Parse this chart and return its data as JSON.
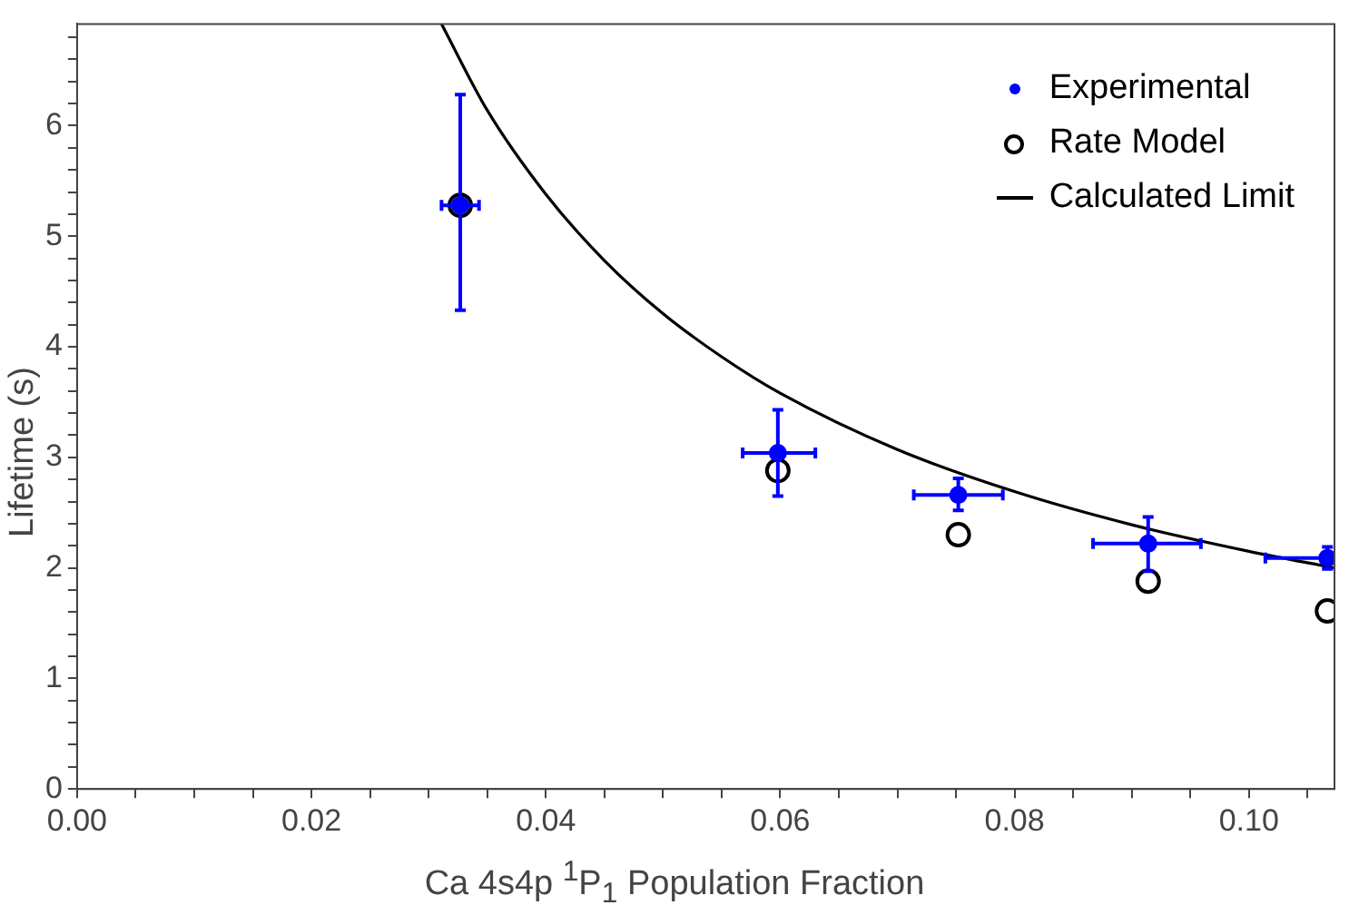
{
  "chart_data": {
    "type": "scatter",
    "xlabel": "Ca 4s4p $^{1}$P$_{1}$ Population Fraction",
    "ylabel": "Lifetime (s)",
    "xlim": [
      0,
      0.1073
    ],
    "ylim": [
      0,
      6.92
    ],
    "xticks": [
      {
        "value": 0,
        "label": "0.00"
      },
      {
        "value": 0.005,
        "label": null
      },
      {
        "value": 0.01,
        "label": null
      },
      {
        "value": 0.015,
        "label": null
      },
      {
        "value": 0.02,
        "label": "0.02"
      },
      {
        "value": 0.025,
        "label": null
      },
      {
        "value": 0.03,
        "label": null
      },
      {
        "value": 0.035,
        "label": null
      },
      {
        "value": 0.04,
        "label": "0.04"
      },
      {
        "value": 0.045,
        "label": null
      },
      {
        "value": 0.05,
        "label": null
      },
      {
        "value": 0.055,
        "label": null
      },
      {
        "value": 0.06,
        "label": "0.06"
      },
      {
        "value": 0.065,
        "label": null
      },
      {
        "value": 0.07,
        "label": null
      },
      {
        "value": 0.075,
        "label": null
      },
      {
        "value": 0.08,
        "label": "0.08"
      },
      {
        "value": 0.085,
        "label": null
      },
      {
        "value": 0.09,
        "label": null
      },
      {
        "value": 0.095,
        "label": null
      },
      {
        "value": 0.1,
        "label": "0.10"
      },
      {
        "value": 0.105,
        "label": null
      }
    ],
    "yticks": [
      0,
      {
        "value": 0.2,
        "label": null
      },
      {
        "value": 0.4,
        "label": null
      },
      {
        "value": 0.6,
        "label": null
      },
      {
        "value": 0.8,
        "label": null
      },
      1,
      {
        "value": 1.2,
        "label": null
      },
      {
        "value": 1.4,
        "label": null
      },
      {
        "value": 1.6,
        "label": null
      },
      {
        "value": 1.8,
        "label": null
      },
      2,
      {
        "value": 2.2,
        "label": null
      },
      {
        "value": 2.4,
        "label": null
      },
      {
        "value": 2.6,
        "label": null
      },
      {
        "value": 2.8,
        "label": null
      },
      3,
      {
        "value": 3.2,
        "label": null
      },
      {
        "value": 3.4,
        "label": null
      },
      {
        "value": 3.6,
        "label": null
      },
      {
        "value": 3.8,
        "label": null
      },
      4,
      {
        "value": 4.2,
        "label": null
      },
      {
        "value": 4.4,
        "label": null
      },
      {
        "value": 4.6,
        "label": null
      },
      {
        "value": 4.8,
        "label": null
      },
      5,
      {
        "value": 5.2,
        "label": null
      },
      {
        "value": 5.4,
        "label": null
      },
      {
        "value": 5.6,
        "label": null
      },
      {
        "value": 5.8,
        "label": null
      },
      6,
      {
        "value": 6.2,
        "label": null
      },
      {
        "value": 6.4,
        "label": null
      },
      {
        "value": 6.6,
        "label": null
      },
      {
        "value": 6.8,
        "label": null
      }
    ],
    "grid": false,
    "legend": "top right",
    "x": [
      0.0327,
      0.0598,
      0.0752,
      0.0914,
      0.1067
    ],
    "series": [
      {
        "name": "Calculated Limit",
        "type": "line",
        "color": "#000000",
        "marker": "none",
        "line_style": "solid",
        "x": [
          0.0311,
          0.035,
          0.04,
          0.045,
          0.05,
          0.055,
          0.06,
          0.07,
          0.08,
          0.09,
          0.1,
          0.1073
        ],
        "values": [
          6.92,
          6.14,
          5.38,
          4.78,
          4.3,
          3.91,
          3.58,
          3.07,
          2.69,
          2.39,
          2.15,
          2.0
        ]
      },
      {
        "name": "Rate Model",
        "type": "scatter",
        "color": "#000000",
        "marker": "circle",
        "values": [
          5.28,
          2.88,
          2.3,
          1.88,
          1.61
        ]
      },
      {
        "name": "Experimental",
        "type": "scatter",
        "color": "#0000ff",
        "marker": "circle",
        "values": [
          5.28,
          3.04,
          2.66,
          2.22,
          2.09
        ],
        "errors": [
          [
            4.33,
            6.28
          ],
          [
            2.65,
            3.43
          ],
          [
            2.52,
            2.81
          ],
          [
            1.97,
            2.46
          ],
          [
            1.99,
            2.19
          ]
        ],
        "xerrors": [
          [
            0.0311,
            0.0343
          ],
          [
            0.0568,
            0.063
          ],
          [
            0.0714,
            0.079
          ],
          [
            0.0867,
            0.0959
          ],
          [
            0.1014,
            0.112
          ]
        ]
      }
    ]
  }
}
